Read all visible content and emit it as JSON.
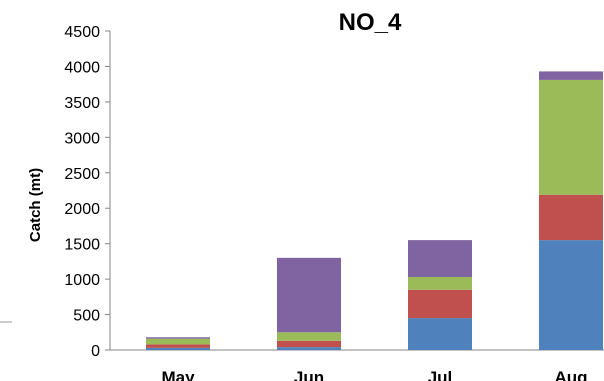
{
  "chart_data": {
    "type": "bar",
    "stacked": true,
    "title": "NO_4",
    "xlabel": "",
    "ylabel": "Catch (mt)",
    "ylim": [
      0,
      4500
    ],
    "yticks": [
      0,
      500,
      1000,
      1500,
      2000,
      2500,
      3000,
      3500,
      4000,
      4500
    ],
    "grid": false,
    "legend": "none",
    "categories": [
      "May",
      "Jun",
      "Jul",
      "Aug"
    ],
    "series": [
      {
        "color": "#4f81bd",
        "values": [
          30,
          40,
          450,
          1550
        ]
      },
      {
        "color": "#c0504d",
        "values": [
          50,
          90,
          400,
          640
        ]
      },
      {
        "color": "#9bbb59",
        "values": [
          80,
          120,
          180,
          1620
        ]
      },
      {
        "color": "#8064a2",
        "values": [
          20,
          1050,
          520,
          120
        ]
      }
    ]
  }
}
